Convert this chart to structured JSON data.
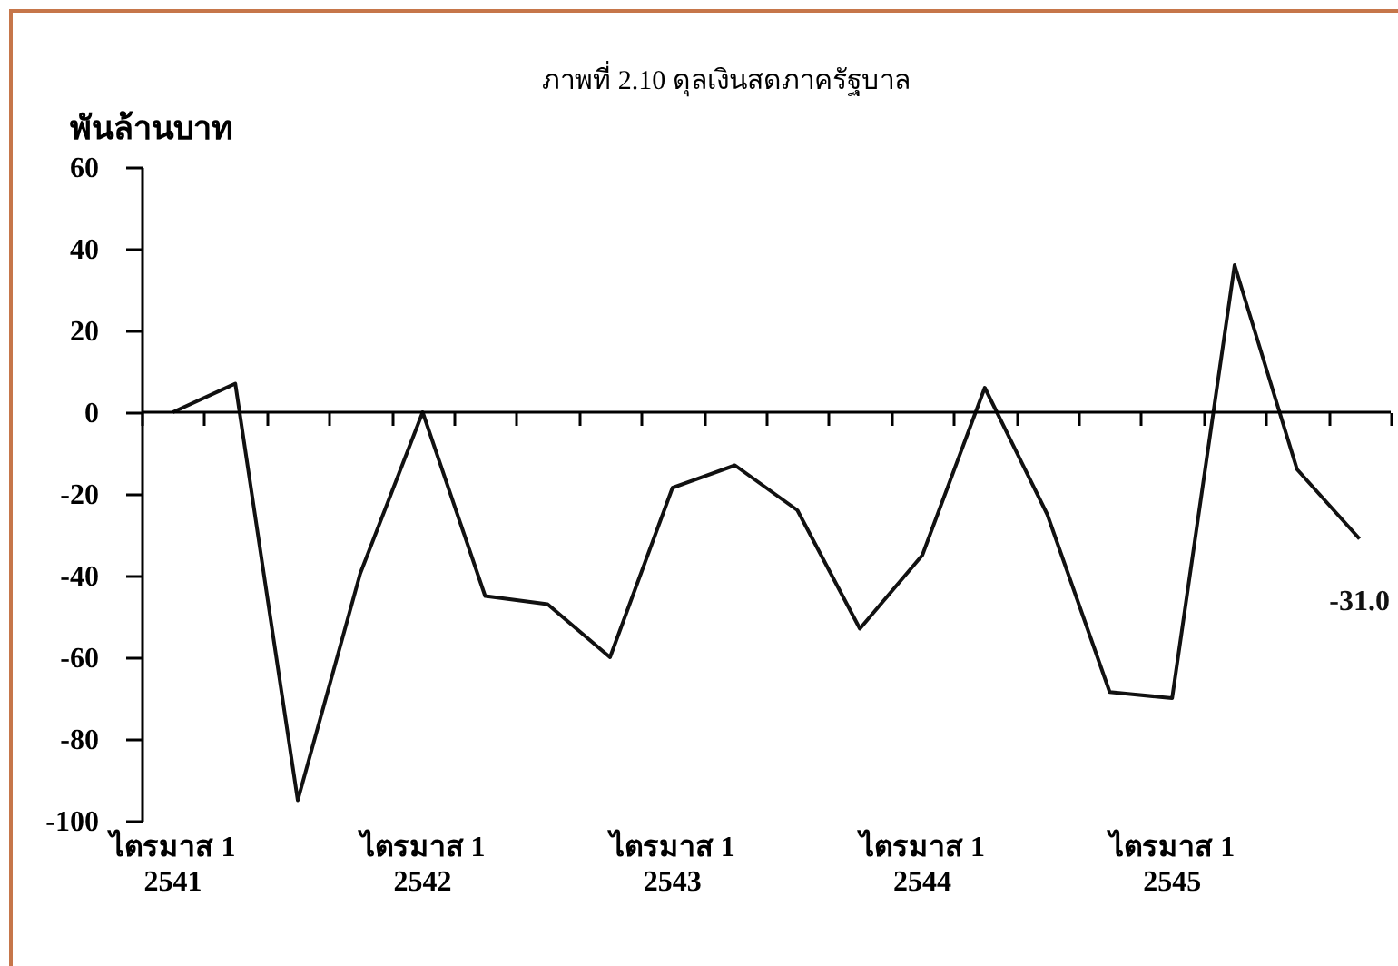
{
  "chart_data": {
    "type": "line",
    "title": "ภาพที่ 2.10  ดุลเงินสดภาครัฐบาล",
    "ylabel": "พันล้านบาท",
    "categories": [
      "ไตรมาส 1\n2541",
      null,
      null,
      null,
      "ไตรมาส 1\n2542",
      null,
      null,
      null,
      "ไตรมาส 1\n2543",
      null,
      null,
      null,
      "ไตรมาส 1\n2544",
      null,
      null,
      null,
      "ไตรมาส 1\n2545",
      null,
      null,
      null
    ],
    "series": [
      {
        "color": "#111111",
        "values": [
          0,
          7,
          -95,
          -39.5,
          0,
          -45,
          -47,
          -60,
          -18.5,
          -13,
          -24,
          -53,
          -35,
          6,
          -25,
          -68.5,
          -70,
          36,
          -14,
          -31.0
        ],
        "value_labels": [
          null,
          null,
          null,
          null,
          null,
          null,
          null,
          null,
          null,
          null,
          null,
          null,
          null,
          null,
          null,
          null,
          null,
          null,
          null,
          "-31.0"
        ]
      }
    ],
    "ylim": [
      -100,
      60
    ],
    "yticks": [
      -100,
      -80,
      -60,
      -40,
      -20,
      0,
      20,
      40,
      60
    ],
    "grid": false,
    "marker": "none",
    "line_style": "solid",
    "ref_lines": [
      {
        "axis": "y",
        "value": 0,
        "color": "#000000",
        "line_style": "solid"
      }
    ]
  }
}
